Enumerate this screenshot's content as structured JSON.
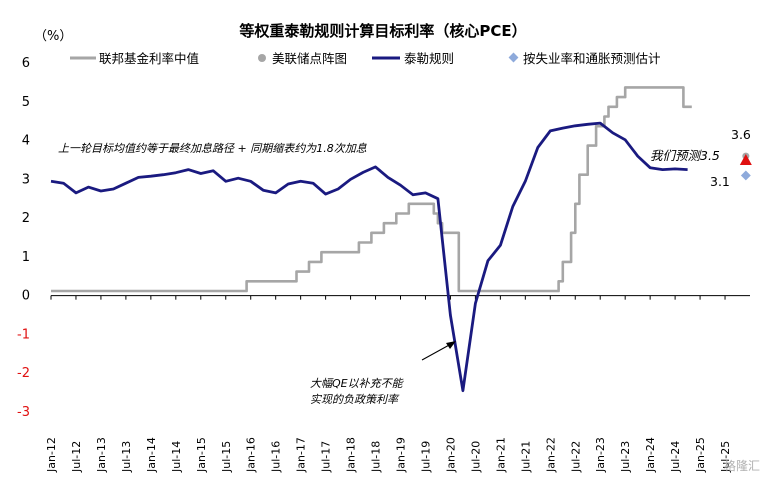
{
  "chart_data": {
    "type": "line",
    "title": "等权重泰勒规则计算目标利率（核心PCE）",
    "unit": "（%）",
    "ylim": [
      -3,
      6
    ],
    "yticks": [
      6,
      5,
      4,
      3,
      2,
      1,
      0,
      -1,
      -2,
      -3
    ],
    "xticks": [
      "Jan-12",
      "Jul-12",
      "Jan-13",
      "Jul-13",
      "Jan-14",
      "Jul-14",
      "Jan-15",
      "Jul-15",
      "Jan-16",
      "Jul-16",
      "Jan-17",
      "Jul-17",
      "Jan-18",
      "Jul-18",
      "Jan-19",
      "Jul-19",
      "Jan-20",
      "Jul-20",
      "Jan-21",
      "Jul-21",
      "Jan-22",
      "Jul-22",
      "Jan-23",
      "Jul-23",
      "Jan-24",
      "Jul-24",
      "Jan-25",
      "Jul-25"
    ],
    "legend": [
      {
        "name": "联邦基金利率中值",
        "color": "#a6a6a6",
        "kind": "line"
      },
      {
        "name": "美联储点阵图",
        "color": "#a6a6a6",
        "kind": "dot"
      },
      {
        "name": "泰勒规则",
        "color": "#1a1a80",
        "kind": "line"
      },
      {
        "name": "按失业率和通胀预测估计",
        "color": "#8eaadb",
        "kind": "diamond"
      }
    ],
    "series": [
      {
        "name": "联邦基金利率中值",
        "color": "#a6a6a6",
        "points": [
          [
            0,
            0.12
          ],
          [
            47,
            0.12
          ],
          [
            47,
            0.37
          ],
          [
            59,
            0.37
          ],
          [
            59,
            0.62
          ],
          [
            62,
            0.62
          ],
          [
            62,
            0.87
          ],
          [
            65,
            0.87
          ],
          [
            65,
            1.12
          ],
          [
            74,
            1.12
          ],
          [
            74,
            1.37
          ],
          [
            77,
            1.37
          ],
          [
            77,
            1.62
          ],
          [
            80,
            1.62
          ],
          [
            80,
            1.87
          ],
          [
            83,
            1.87
          ],
          [
            83,
            2.12
          ],
          [
            86,
            2.12
          ],
          [
            86,
            2.37
          ],
          [
            92,
            2.37
          ],
          [
            92,
            2.12
          ],
          [
            93,
            2.12
          ],
          [
            93,
            1.87
          ],
          [
            94,
            1.87
          ],
          [
            94,
            1.62
          ],
          [
            98,
            1.62
          ],
          [
            98,
            0.12
          ],
          [
            122,
            0.12
          ],
          [
            122,
            0.37
          ],
          [
            123,
            0.37
          ],
          [
            123,
            0.87
          ],
          [
            125,
            0.87
          ],
          [
            125,
            1.62
          ],
          [
            126,
            1.62
          ],
          [
            126,
            2.37
          ],
          [
            127,
            2.37
          ],
          [
            127,
            3.12
          ],
          [
            129,
            3.12
          ],
          [
            129,
            3.87
          ],
          [
            131,
            3.87
          ],
          [
            131,
            4.37
          ],
          [
            133,
            4.37
          ],
          [
            133,
            4.62
          ],
          [
            134,
            4.62
          ],
          [
            134,
            4.87
          ],
          [
            136,
            4.87
          ],
          [
            136,
            5.12
          ],
          [
            138,
            5.12
          ],
          [
            138,
            5.37
          ],
          [
            152,
            5.37
          ],
          [
            152,
            4.87
          ],
          [
            154,
            4.87
          ]
        ]
      },
      {
        "name": "泰勒规则",
        "color": "#1a1a80",
        "points": [
          [
            0,
            2.95
          ],
          [
            3,
            2.9
          ],
          [
            6,
            2.65
          ],
          [
            9,
            2.8
          ],
          [
            12,
            2.7
          ],
          [
            15,
            2.75
          ],
          [
            18,
            2.9
          ],
          [
            21,
            3.05
          ],
          [
            24,
            3.08
          ],
          [
            27,
            3.12
          ],
          [
            30,
            3.17
          ],
          [
            33,
            3.25
          ],
          [
            36,
            3.15
          ],
          [
            39,
            3.22
          ],
          [
            42,
            2.95
          ],
          [
            45,
            3.03
          ],
          [
            48,
            2.95
          ],
          [
            51,
            2.72
          ],
          [
            54,
            2.65
          ],
          [
            57,
            2.88
          ],
          [
            60,
            2.95
          ],
          [
            63,
            2.9
          ],
          [
            66,
            2.62
          ],
          [
            69,
            2.75
          ],
          [
            72,
            3.0
          ],
          [
            75,
            3.18
          ],
          [
            78,
            3.32
          ],
          [
            81,
            3.05
          ],
          [
            84,
            2.85
          ],
          [
            87,
            2.6
          ],
          [
            90,
            2.65
          ],
          [
            93,
            2.5
          ],
          [
            96,
            -0.5
          ],
          [
            99,
            -2.45
          ],
          [
            102,
            -0.2
          ],
          [
            105,
            0.9
          ],
          [
            108,
            1.3
          ],
          [
            111,
            2.3
          ],
          [
            114,
            2.95
          ],
          [
            117,
            3.82
          ],
          [
            120,
            4.25
          ],
          [
            123,
            4.32
          ],
          [
            126,
            4.38
          ],
          [
            129,
            4.42
          ],
          [
            132,
            4.45
          ],
          [
            135,
            4.2
          ],
          [
            138,
            4.02
          ],
          [
            141,
            3.6
          ],
          [
            144,
            3.3
          ],
          [
            147,
            3.25
          ],
          [
            150,
            3.27
          ],
          [
            153,
            3.25
          ]
        ]
      }
    ],
    "dot_plot": [
      {
        "x": 167,
        "y": 3.6
      }
    ],
    "estimate": [
      {
        "x": 167,
        "y": 3.1
      }
    ],
    "our_forecast": [
      {
        "x": 167,
        "y": 3.5
      }
    ],
    "labels": {
      "dot_value": "3.6",
      "estimate_value": "3.1",
      "forecast_label": "我们预测3.5"
    },
    "annotations": {
      "rule_note": "上一轮目标均值约等于最终加息路径 + 同期缩表约为1.8次加息",
      "negative_note_line1": "大幅QE以补充不能",
      "negative_note_line2": "实现的负政策利率"
    },
    "watermark": "格隆汇"
  }
}
